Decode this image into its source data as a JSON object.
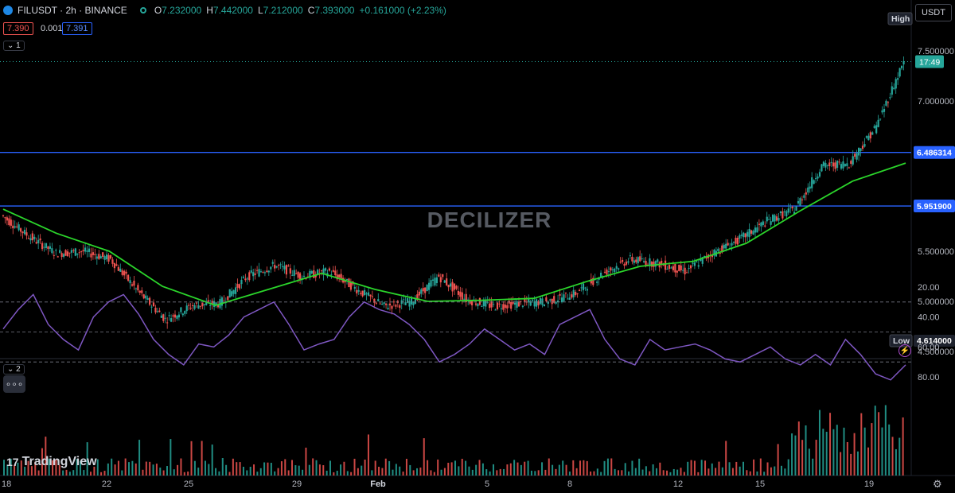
{
  "header": {
    "symbol": "FILUSDT · 2h · BINANCE",
    "open_label": "O",
    "open": "7.232000",
    "high_label": "H",
    "high": "7.442000",
    "low_label": "L",
    "low": "7.212000",
    "close_label": "C",
    "close": "7.393000",
    "change": "+0.161000 (+2.23%)",
    "sell_price": "7.390",
    "spread": "0.001",
    "buy_price": "7.391",
    "pane1_toggle": "1",
    "pane2_toggle": "2",
    "more_label": "∘∘∘",
    "currency": "USDT"
  },
  "watermark": "DECILIZER",
  "branding": "TradingView",
  "colors": {
    "up": "#26a69a",
    "down": "#ef5350",
    "ma": "#2bd52b",
    "rsi": "#7e57c2",
    "hline": "#2962ff",
    "background": "#000000"
  },
  "chart_data": [
    {
      "type": "candlestick",
      "pair": "FILUSDT",
      "timeframe": "2h",
      "exchange": "BINANCE",
      "y_ticks": [
        "7.500000",
        "7.000000",
        "5.500000",
        "5.000000",
        "4.500000"
      ],
      "ylim": [
        4.5,
        7.75
      ],
      "x_ticks": [
        "18",
        "22",
        "25",
        "29",
        "Feb",
        "5",
        "8",
        "12",
        "15",
        "19"
      ],
      "horizontal_lines": [
        {
          "price": 6.486314,
          "label": "6.486314"
        },
        {
          "price": 5.9519,
          "label": "5.951900"
        }
      ],
      "markers": [
        {
          "label": "High",
          "price": 7.75
        },
        {
          "label": "Low",
          "price": 4.614,
          "value_label": "4.614000"
        }
      ],
      "last_price": {
        "value": 7.393,
        "countdown": "17:49"
      },
      "price_path": [
        {
          "x": "18",
          "y": 5.86
        },
        {
          "x": "19",
          "y": 5.65
        },
        {
          "x": "20",
          "y": 5.48
        },
        {
          "x": "21",
          "y": 5.5
        },
        {
          "x": "22",
          "y": 5.42
        },
        {
          "x": "23",
          "y": 5.1
        },
        {
          "x": "24",
          "y": 4.82
        },
        {
          "x": "25",
          "y": 4.96
        },
        {
          "x": "26",
          "y": 4.98
        },
        {
          "x": "27",
          "y": 5.25
        },
        {
          "x": "28",
          "y": 5.36
        },
        {
          "x": "29",
          "y": 5.25
        },
        {
          "x": "30",
          "y": 5.3
        },
        {
          "x": "31",
          "y": 5.12
        },
        {
          "x": "Feb",
          "y": 4.95
        },
        {
          "x": "2",
          "y": 5.0
        },
        {
          "x": "3",
          "y": 5.25
        },
        {
          "x": "4",
          "y": 5.02
        },
        {
          "x": "5",
          "y": 4.95
        },
        {
          "x": "6",
          "y": 4.98
        },
        {
          "x": "7",
          "y": 5.0
        },
        {
          "x": "8",
          "y": 5.08
        },
        {
          "x": "9",
          "y": 5.28
        },
        {
          "x": "10",
          "y": 5.42
        },
        {
          "x": "11",
          "y": 5.38
        },
        {
          "x": "12",
          "y": 5.3
        },
        {
          "x": "13",
          "y": 5.48
        },
        {
          "x": "14",
          "y": 5.62
        },
        {
          "x": "15",
          "y": 5.8
        },
        {
          "x": "16",
          "y": 5.92
        },
        {
          "x": "17",
          "y": 6.35
        },
        {
          "x": "18",
          "y": 6.38
        },
        {
          "x": "19",
          "y": 6.75
        },
        {
          "x": "20",
          "y": 7.393
        }
      ],
      "moving_average": [
        {
          "x": "18",
          "y": 5.92
        },
        {
          "x": "20",
          "y": 5.68
        },
        {
          "x": "22",
          "y": 5.5
        },
        {
          "x": "24",
          "y": 5.15
        },
        {
          "x": "26",
          "y": 4.96
        },
        {
          "x": "28",
          "y": 5.12
        },
        {
          "x": "30",
          "y": 5.28
        },
        {
          "x": "Feb",
          "y": 5.12
        },
        {
          "x": "3",
          "y": 5.0
        },
        {
          "x": "5",
          "y": 5.01
        },
        {
          "x": "7",
          "y": 5.03
        },
        {
          "x": "9",
          "y": 5.2
        },
        {
          "x": "11",
          "y": 5.35
        },
        {
          "x": "13",
          "y": 5.4
        },
        {
          "x": "15",
          "y": 5.58
        },
        {
          "x": "17",
          "y": 5.9
        },
        {
          "x": "19",
          "y": 6.2
        },
        {
          "x": "20",
          "y": 6.38
        }
      ]
    },
    {
      "type": "line",
      "indicator": "RSI",
      "y_ticks": [
        "80.00",
        "60.00",
        "40.00",
        "20.00"
      ],
      "ylim": [
        20,
        85
      ],
      "bands": [
        70,
        30
      ],
      "values": [
        48,
        35,
        25,
        45,
        55,
        62,
        40,
        30,
        25,
        38,
        55,
        65,
        72,
        58,
        60,
        52,
        40,
        35,
        30,
        45,
        62,
        58,
        55,
        40,
        30,
        35,
        38,
        45,
        55,
        70,
        65,
        58,
        48,
        55,
        62,
        58,
        65,
        45,
        40,
        35,
        55,
        68,
        72,
        55,
        62,
        60,
        58,
        62,
        68,
        70,
        65,
        60,
        68,
        72,
        65,
        72,
        55,
        65,
        78,
        82,
        72
      ]
    }
  ]
}
